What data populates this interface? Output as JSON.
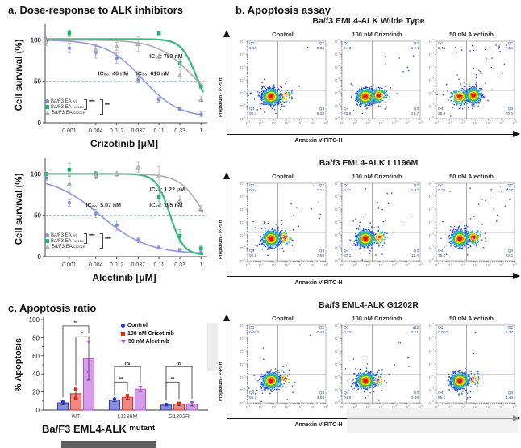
{
  "panels": {
    "a_title": "a. Dose-response to ALK inhibitors",
    "b_title": "b. Apoptosis assay",
    "c_title": "c. Apoptosis ratio"
  },
  "flow_quadrant_names": [
    "Q1",
    "Q2",
    "Q3",
    "Q4"
  ],
  "chart_data": [
    {
      "id": "dose_response_crizotinib",
      "type": "line",
      "xlabel": "Crizotinib [μM]",
      "ylabel": "Cell survival (%)",
      "xscale": "log",
      "xticks": [
        0.001,
        0.004,
        0.012,
        0.037,
        0.11,
        0.33,
        1
      ],
      "yticks": [
        0,
        50,
        100
      ],
      "ylim": [
        0,
        115
      ],
      "dashed_line_y": 50,
      "sig": [
        "****",
        "***"
      ],
      "series": [
        {
          "name": "Ba/F3 EA",
          "sup": "WT",
          "color": "#8790d6",
          "marker": "circle",
          "ic50_label": "IC₅₀: 46 nM",
          "ic50_um": 0.046,
          "hill": 1.05,
          "top": 100,
          "bottom": 6,
          "label_at": [
            0.01,
            57
          ],
          "x": [
            0.0003,
            0.001,
            0.004,
            0.012,
            0.037,
            0.11,
            0.33,
            1
          ],
          "y": [
            100,
            90,
            85,
            78,
            52,
            28,
            16,
            10
          ],
          "err": [
            5,
            6,
            7,
            6,
            4,
            3,
            2,
            3
          ]
        },
        {
          "name": "Ba/F3 EA",
          "sup": "L1196M",
          "color": "#2bb373",
          "marker": "square",
          "ic50_label": "IC₅₀: 789 nM",
          "ic50_um": 0.789,
          "hill": 2.5,
          "top": 101,
          "bottom": 10,
          "label_at": [
            0.16,
            78
          ],
          "x": [
            0.001,
            0.11,
            0.33,
            1
          ],
          "y": [
            108,
            108,
            72,
            44
          ],
          "err": [
            4,
            2,
            5,
            3
          ]
        },
        {
          "name": "Ba/F3 EA",
          "sup": "G1202R",
          "color": "#a9a9a9",
          "marker": "triangle",
          "ic50_label": "IC₅₀: 616 nM",
          "ic50_um": 0.616,
          "hill": 1.1,
          "top": 100,
          "bottom": 15,
          "label_at": [
            0.08,
            57
          ],
          "x": [
            0.0003,
            0.004,
            0.012,
            0.037,
            0.11,
            0.33,
            1
          ],
          "y": [
            97,
            88,
            92,
            95,
            80,
            57,
            28
          ],
          "err": [
            4,
            6,
            5,
            9,
            5,
            8,
            4
          ]
        }
      ]
    },
    {
      "id": "dose_response_alectinib",
      "type": "line",
      "xlabel": "Alectinib [μM]",
      "ylabel": "Cell survival (%)",
      "xscale": "log",
      "xticks": [
        0.001,
        0.004,
        0.012,
        0.037,
        0.11,
        0.33,
        1
      ],
      "yticks": [
        0,
        50,
        100
      ],
      "ylim": [
        0,
        115
      ],
      "dashed_line_y": 50,
      "sig": [
        "****",
        "****"
      ],
      "series": [
        {
          "name": "Ba/F3 EA",
          "sup": "WT",
          "color": "#8790d6",
          "marker": "circle",
          "ic50_label": "IC₅₀: 5.07 nM",
          "ic50_um": 0.00507,
          "hill": 0.8,
          "top": 97,
          "bottom": 3,
          "label_at": [
            0.006,
            60
          ],
          "x": [
            0.0003,
            0.001,
            0.004,
            0.012,
            0.037,
            0.11,
            0.33,
            1
          ],
          "y": [
            95,
            65,
            52,
            38,
            20,
            11,
            8,
            5
          ],
          "err": [
            3,
            4,
            5,
            6,
            3,
            2,
            2,
            2
          ]
        },
        {
          "name": "Ba/F3 EA",
          "sup": "L1196M",
          "color": "#2bb373",
          "marker": "square",
          "ic50_label": "IC₅₀: 195 nM",
          "ic50_um": 0.195,
          "hill": 2.8,
          "top": 100,
          "bottom": 2,
          "label_at": [
            0.16,
            60
          ],
          "x": [
            0.0003,
            0.001,
            0.004,
            0.11,
            0.33,
            1
          ],
          "y": [
            100,
            105,
            100,
            72,
            25,
            10
          ],
          "err": [
            2,
            8,
            3,
            10,
            8,
            3
          ]
        },
        {
          "name": "Ba/F3 EA",
          "sup": "G1202R",
          "color": "#a9a9a9",
          "marker": "triangle",
          "ic50_label": "IC₅₀: 1.22 μM",
          "ic50_um": 1.22,
          "hill": 1.6,
          "top": 100,
          "bottom": 0,
          "label_at": [
            0.17,
            79
          ],
          "x": [
            0.001,
            0.004,
            0.012,
            0.037,
            0.11,
            0.33,
            1
          ],
          "y": [
            88,
            98,
            100,
            108,
            97,
            68,
            58
          ],
          "err": [
            10,
            4,
            3,
            6,
            12,
            5,
            4
          ]
        }
      ]
    },
    {
      "id": "apoptosis_flow_wild_type",
      "type": "scatter",
      "title": "Ba/f3 EML4-ALK Wilde Type",
      "xlabel": "Annexin V-FITC-H",
      "ylabel": "Propidium - P-PI-H",
      "axis_decades": [
        0,
        6
      ],
      "conditions": [
        {
          "name": "Control",
          "quadrants": {
            "Q1": "0.16",
            "Q2": "0.23",
            "Q3": "6.28",
            "Q4": "90.4"
          }
        },
        {
          "name": "100 nM Crizotinib",
          "quadrants": {
            "Q1": "0.18",
            "Q2": "1.24",
            "Q3": "21.7",
            "Q4": "76.9"
          }
        },
        {
          "name": "50 nM Alectinib",
          "quadrants": {
            "Q1": "0.41",
            "Q2": "2.59",
            "Q3": "70.0",
            "Q4": "26.8"
          }
        }
      ]
    },
    {
      "id": "apoptosis_flow_l1196m",
      "type": "scatter",
      "title": "Ba/f3 EML4-ALK L1196M",
      "xlabel": "Annexin V-FITC-H",
      "ylabel": "Propidium - P-PI-H",
      "axis_decades": [
        0,
        6
      ],
      "conditions": [
        {
          "name": "Control",
          "quadrants": {
            "Q1": "0.24",
            "Q2": "1.12",
            "Q3": "7.88",
            "Q4": "90.8"
          }
        },
        {
          "name": "100 nM Crizotinib",
          "quadrants": {
            "Q1": "0.21",
            "Q2": "1.22",
            "Q3": "11.4",
            "Q4": "87.1"
          }
        },
        {
          "name": "50 nM Alectinib",
          "quadrants": {
            "Q1": "0.26",
            "Q2": "2.17",
            "Q3": "22.2",
            "Q4": "75.2"
          }
        }
      ]
    },
    {
      "id": "apoptosis_flow_g1202r",
      "type": "scatter",
      "title": "Ba/f3 EML4-ALK G1202R",
      "xlabel": "Annexin V-FITC-H",
      "ylabel": "Propidium - P-PI-H",
      "axis_decades": [
        0,
        6
      ],
      "conditions": [
        {
          "name": "Control",
          "quadrants": {
            "Q1": "0.072",
            "Q2": "0.43",
            "Q3": "3.84",
            "Q4": "95.7"
          }
        },
        {
          "name": "100 nM Crizotinib",
          "quadrants": {
            "Q1": "0.22",
            "Q2": "0.41",
            "Q3": "4.38",
            "Q4": "94.9"
          }
        },
        {
          "name": "50 nM Alectinib",
          "quadrants": {
            "Q1": "0.064",
            "Q2": "0.37",
            "Q3": "4.44",
            "Q4": "95.1"
          }
        }
      ]
    },
    {
      "id": "apoptosis_ratio",
      "type": "bar",
      "categories": [
        "WT",
        "L1196M",
        "G1202R"
      ],
      "ylabel": "% Apoptosis",
      "ylim": [
        0,
        100
      ],
      "yticks": [
        0,
        20,
        40,
        60,
        80,
        100
      ],
      "xlabel_main": "Ba/F3 EML4-ALK",
      "xlabel_sup": "mutant",
      "series": [
        {
          "name": "Control",
          "color": "#2a32c8",
          "marker": "circle",
          "values": [
            8,
            11,
            5.5
          ],
          "errors": [
            2,
            1.5,
            1
          ],
          "points": [
            [
              9
            ],
            [
              12.5
            ],
            [
              6.5
            ]
          ]
        },
        {
          "name": "100 nM Crizotinib",
          "color": "#e8271b",
          "marker": "square",
          "values": [
            18,
            14,
            6.5
          ],
          "errors": [
            5,
            2,
            1.5
          ],
          "points": [
            [
              23,
              13
            ],
            [
              16
            ],
            [
              7.5
            ]
          ]
        },
        {
          "name": "50 nM Alectinib",
          "color": "#b44fd8",
          "marker": "triangle-down",
          "values": [
            57,
            23,
            6.5
          ],
          "errors": [
            24,
            2.5,
            2
          ],
          "points": [
            [
              75,
              41
            ],
            [
              25
            ],
            [
              8
            ]
          ]
        }
      ],
      "sig": [
        {
          "outer": "**",
          "outer_span": [
            0,
            2
          ],
          "inner": "*",
          "inner_span": [
            1,
            2
          ]
        },
        {
          "outer": "ns",
          "outer_span": [
            0,
            2
          ],
          "inner": "**",
          "inner_span": [
            0,
            1
          ]
        },
        {
          "outer": "ns",
          "outer_span": [
            0,
            2
          ],
          "inner": "**",
          "inner_span": [
            0,
            1
          ]
        }
      ]
    }
  ]
}
